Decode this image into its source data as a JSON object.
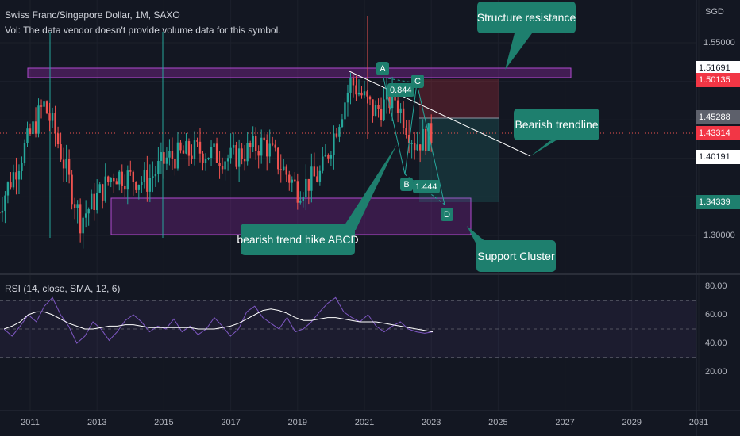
{
  "legend": {
    "title": "Swiss Franc/Singapore Dollar, 1M, SAXO",
    "vol": "Vol: The data vendor doesn't provide volume data for this symbol."
  },
  "currency": "SGD",
  "rsi_legend": "RSI (14, close, SMA, 12, 6)",
  "callouts": {
    "structure_resistance": "Structure resistance",
    "bearish_trendline": "Bearish trendline",
    "bearish_trend_hike": "bearish trend hike ABCD",
    "support_cluster": "Support Cluster"
  },
  "points": {
    "a": "A",
    "b": "B",
    "c": "C",
    "d": "D",
    "ratio_1": "0.844",
    "ratio_2": "1.444"
  },
  "price_axis": {
    "ticks": [
      "1.55000",
      "1.30000"
    ],
    "tags": [
      {
        "label": "1.51691",
        "bg": "#ffffff",
        "fg": "#131722"
      },
      {
        "label": "1.50135",
        "bg": "#f23645",
        "fg": "#ffffff"
      },
      {
        "label": "1.45288",
        "bg": "#5d606b",
        "fg": "#ffffff"
      },
      {
        "label": "1.43314",
        "bg": "#f23645",
        "fg": "#ffffff"
      },
      {
        "label": "1.40191",
        "bg": "#ffffff",
        "fg": "#131722"
      },
      {
        "label": "1.34339",
        "bg": "#1e7f6e",
        "fg": "#ffffff"
      }
    ]
  },
  "rsi_axis": [
    "80.00",
    "60.00",
    "40.00",
    "20.00"
  ],
  "colors": {
    "up": "#26a69a",
    "down": "#ef5350",
    "zone": "#9c27b0",
    "rsi": "#7e57c2",
    "rsi_ma": "#ffffff"
  },
  "chart_data": [
    {
      "type": "candlestick",
      "title": "Swiss Franc/Singapore Dollar, 1M, SAXO",
      "x_tick_labels": [
        "2011",
        "2013",
        "2015",
        "2017",
        "2019",
        "2021",
        "2023",
        "2025",
        "2027",
        "2029",
        "2031"
      ],
      "ylim": [
        1.26,
        1.58
      ],
      "approx_close_path": [
        {
          "x": 2010.0,
          "y": 1.33
        },
        {
          "x": 2011.4,
          "y": 1.47
        },
        {
          "x": 2011.7,
          "y": 1.44
        },
        {
          "x": 2012.5,
          "y": 1.32
        },
        {
          "x": 2013.5,
          "y": 1.38
        },
        {
          "x": 2014.5,
          "y": 1.37
        },
        {
          "x": 2015.1,
          "y": 1.4
        },
        {
          "x": 2016.0,
          "y": 1.41
        },
        {
          "x": 2017.0,
          "y": 1.4
        },
        {
          "x": 2018.0,
          "y": 1.42
        },
        {
          "x": 2019.0,
          "y": 1.36
        },
        {
          "x": 2019.7,
          "y": 1.38
        },
        {
          "x": 2020.6,
          "y": 1.5
        },
        {
          "x": 2021.3,
          "y": 1.46
        },
        {
          "x": 2021.9,
          "y": 1.48
        },
        {
          "x": 2022.5,
          "y": 1.42
        },
        {
          "x": 2023.0,
          "y": 1.43
        }
      ],
      "annotations": [
        {
          "label": "Structure resistance",
          "y": 1.5169
        },
        {
          "label": "Support Cluster",
          "y_range": [
            1.3,
            1.34
          ]
        },
        {
          "label": "Bearish trendline"
        },
        {
          "label": "bearish trend hike ABCD"
        }
      ]
    },
    {
      "type": "line",
      "title": "RSI (14, close, SMA, 12, 6)",
      "ylim": [
        10,
        90
      ],
      "levels": [
        70,
        50,
        30
      ],
      "series": [
        {
          "values": [
            50,
            45,
            52,
            60,
            55,
            66,
            72,
            60,
            52,
            40,
            45,
            55,
            50,
            42,
            48,
            56,
            60,
            55,
            48,
            52,
            50,
            57,
            48,
            52,
            46,
            50,
            58,
            52,
            45,
            50,
            62,
            66,
            58,
            54,
            50,
            58,
            48,
            50,
            55,
            62,
            68,
            72,
            62,
            58,
            55,
            60,
            52,
            48,
            52,
            55,
            50,
            48,
            47,
            48
          ]
        },
        {
          "values": [
            50,
            52,
            55,
            60,
            62,
            62,
            60,
            57,
            54,
            52,
            50,
            50,
            51,
            52,
            52,
            53,
            53,
            52,
            51,
            51,
            51,
            51,
            51,
            51,
            50,
            50,
            50,
            51,
            52,
            54,
            57,
            60,
            63,
            64,
            63,
            61,
            58,
            56,
            56,
            57,
            58,
            58,
            57,
            56,
            55,
            55,
            55,
            54,
            53,
            52,
            51,
            50,
            49,
            48
          ]
        }
      ]
    }
  ]
}
